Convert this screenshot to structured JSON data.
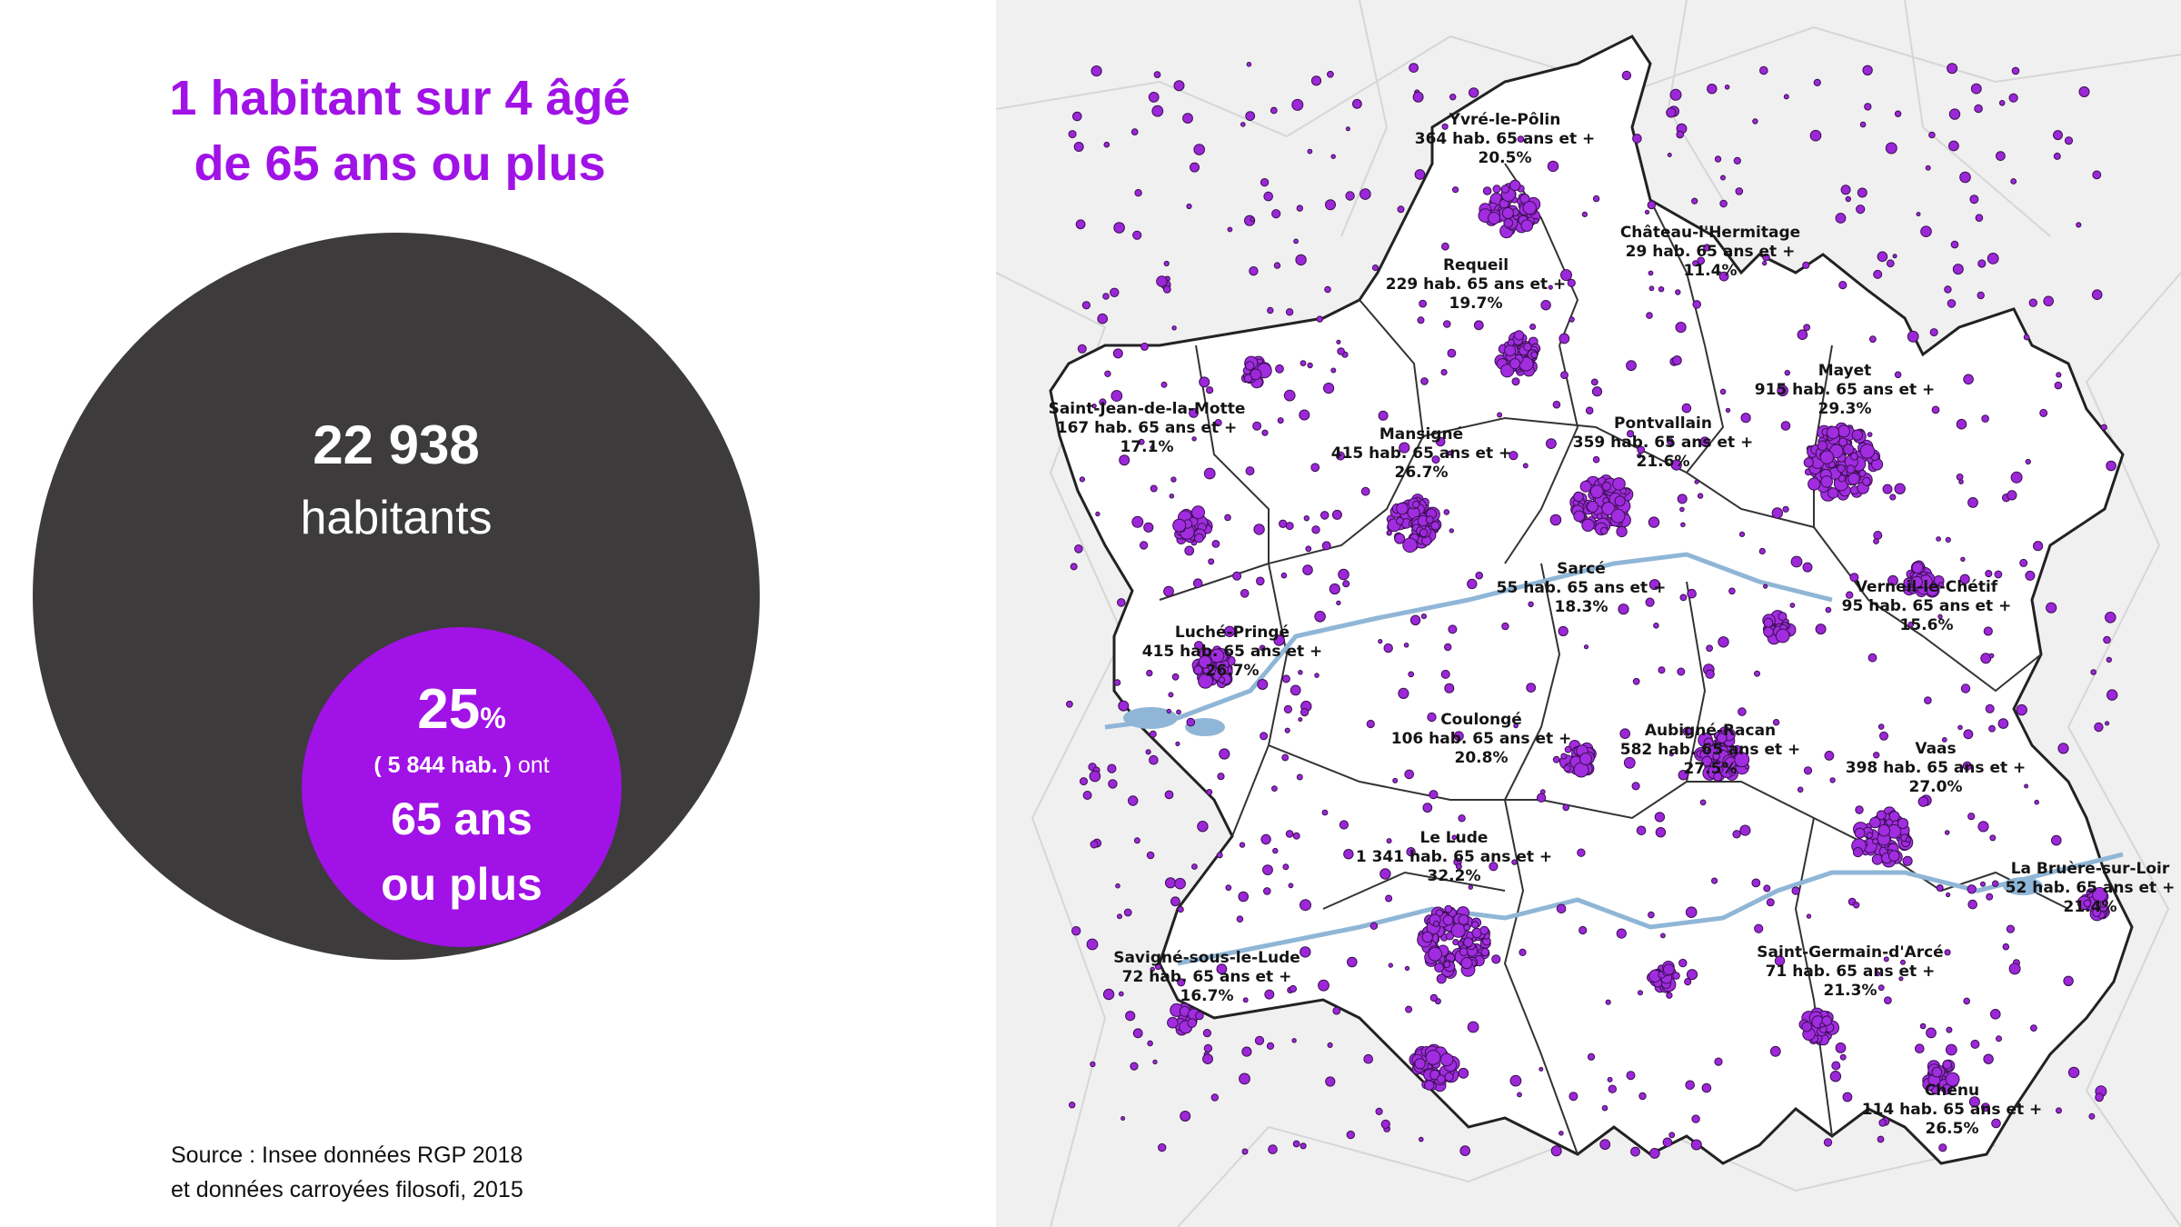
{
  "infographic": {
    "title_line1": "1 habitant sur 4 âgé",
    "title_line2": "de 65 ans ou plus",
    "total_number": "22 938",
    "total_label": "habitants",
    "percent": "25",
    "percent_sign": "%",
    "count_open": "( 5 844  hab. )",
    "count_suffix": "ont",
    "age_line1": "65 ans",
    "age_line2": "ou plus",
    "source_line1": "Source : Insee données RGP 2018",
    "source_line2": "et données carroyées filosofi, 2015"
  },
  "colors": {
    "accent": "#a012e6",
    "dark": "#3d3b3c",
    "map_background": "#f0f0f0",
    "territory": "#ffffff",
    "water": "#8fb6d6"
  },
  "map": {
    "communes": [
      {
        "name": "Yvré-le-Pôlin",
        "line2": "364  hab. 65 ans et +",
        "line3": "20.5%"
      },
      {
        "name": "Château-l'Hermitage",
        "line2": "29  hab. 65 ans et +",
        "line3": "11.4%"
      },
      {
        "name": "Requeil",
        "line2": "229  hab. 65 ans et +",
        "line3": "19.7%"
      },
      {
        "name": "Mayet",
        "line2": "915  hab. 65 ans et +",
        "line3": "29.3%"
      },
      {
        "name": "Saint-Jean-de-la-Motte",
        "line2": "167  hab. 65 ans et +",
        "line3": "17.1%"
      },
      {
        "name": "Mansigné",
        "line2": "415  hab. 65 ans et +",
        "line3": "26.7%"
      },
      {
        "name": "Pontvallain",
        "line2": "359  hab. 65 ans et +",
        "line3": "21.6%"
      },
      {
        "name": "Sarcé",
        "line2": "55  hab. 65 ans et +",
        "line3": "18.3%"
      },
      {
        "name": "Verneil-le-Chétif",
        "line2": "95  hab. 65 ans et +",
        "line3": "15.6%"
      },
      {
        "name": "Luché-Pringé",
        "line2": "415  hab. 65 ans et +",
        "line3": "26.7%"
      },
      {
        "name": "Coulongé",
        "line2": "106  hab. 65 ans et +",
        "line3": "20.8%"
      },
      {
        "name": "Aubigné-Racan",
        "line2": "582  hab. 65 ans et +",
        "line3": "27.5%"
      },
      {
        "name": "Vaas",
        "line2": "398  hab. 65 ans et +",
        "line3": "27.0%"
      },
      {
        "name": "Le Lude",
        "line2": "1 341  hab. 65 ans et +",
        "line3": "32.2%"
      },
      {
        "name": "La Bruère-sur-Loir",
        "line2": "52  hab. 65 ans et +",
        "line3": "21.4%"
      },
      {
        "name": "Savigné-sous-le-Lude",
        "line2": "72  hab. 65 ans et +",
        "line3": "16.7%"
      },
      {
        "name": "Saint-Germain-d'Arcé",
        "line2": "71  hab. 65 ans et +",
        "line3": "21.3%"
      },
      {
        "name": "Chenu",
        "line2": "114  hab. 65 ans et +",
        "line3": "26.5%"
      }
    ]
  }
}
